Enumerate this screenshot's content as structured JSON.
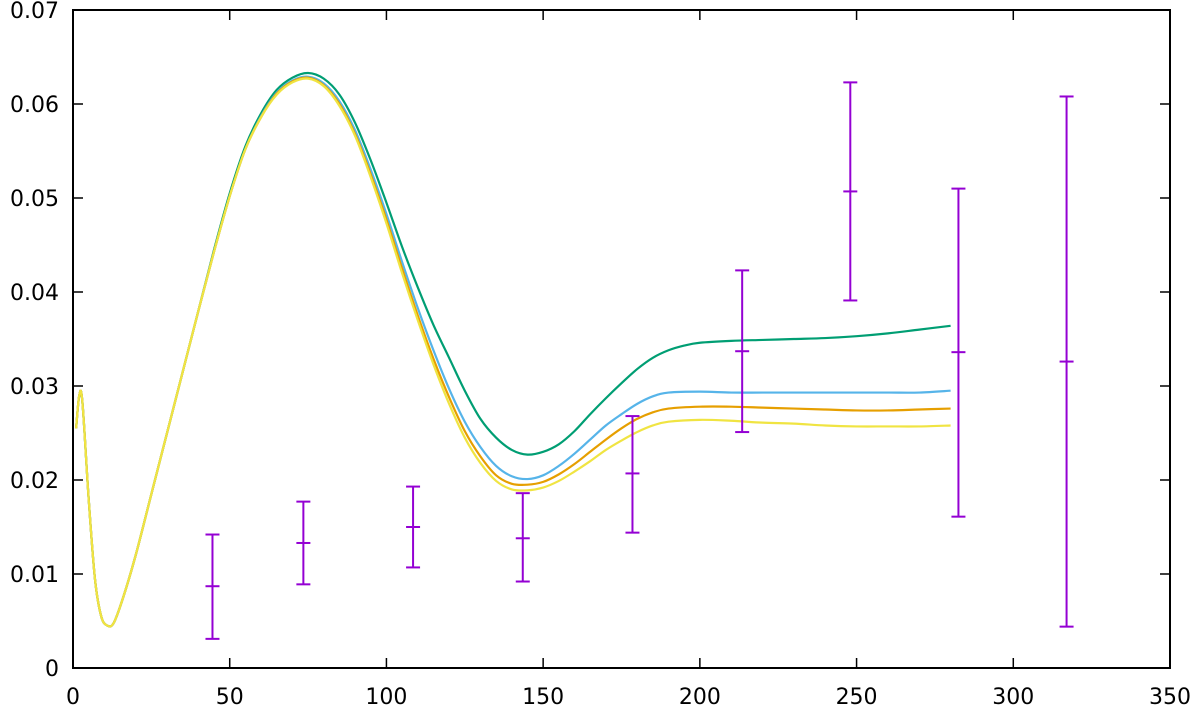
{
  "chart_data": {
    "type": "line",
    "title": "",
    "xlabel": "",
    "ylabel": "",
    "xlim": [
      0,
      350
    ],
    "ylim": [
      0,
      0.07
    ],
    "grid": false,
    "legend": "none",
    "x_ticks": [
      0,
      50,
      100,
      150,
      200,
      250,
      300,
      350
    ],
    "x_tick_labels": [
      "0",
      "50",
      "100",
      "150",
      "200",
      "250",
      "300",
      "350"
    ],
    "y_ticks": [
      0,
      0.01,
      0.02,
      0.03,
      0.04,
      0.05,
      0.06,
      0.07
    ],
    "y_tick_labels": [
      "0",
      "0.01",
      "0.02",
      "0.03",
      "0.04",
      "0.05",
      "0.06",
      "0.07"
    ],
    "series": [
      {
        "color": "#009e73",
        "points": [
          [
            1,
            0.0255
          ],
          [
            2,
            0.029
          ],
          [
            3,
            0.0283
          ],
          [
            5,
            0.018
          ],
          [
            7,
            0.0095
          ],
          [
            9,
            0.0055
          ],
          [
            11,
            0.0045
          ],
          [
            13,
            0.0048
          ],
          [
            16,
            0.0075
          ],
          [
            20,
            0.012
          ],
          [
            25,
            0.0185
          ],
          [
            30,
            0.025
          ],
          [
            35,
            0.0315
          ],
          [
            40,
            0.038
          ],
          [
            45,
            0.0445
          ],
          [
            50,
            0.0505
          ],
          [
            55,
            0.0555
          ],
          [
            60,
            0.059
          ],
          [
            65,
            0.0615
          ],
          [
            70,
            0.0628
          ],
          [
            75,
            0.0633
          ],
          [
            80,
            0.0627
          ],
          [
            85,
            0.061
          ],
          [
            90,
            0.058
          ],
          [
            95,
            0.054
          ],
          [
            100,
            0.0495
          ],
          [
            105,
            0.0448
          ],
          [
            110,
            0.0405
          ],
          [
            115,
            0.0365
          ],
          [
            120,
            0.033
          ],
          [
            125,
            0.0295
          ],
          [
            130,
            0.0265
          ],
          [
            135,
            0.0245
          ],
          [
            140,
            0.0232
          ],
          [
            145,
            0.0227
          ],
          [
            150,
            0.023
          ],
          [
            155,
            0.0238
          ],
          [
            160,
            0.0252
          ],
          [
            165,
            0.027
          ],
          [
            170,
            0.0287
          ],
          [
            175,
            0.0303
          ],
          [
            180,
            0.0318
          ],
          [
            185,
            0.033
          ],
          [
            190,
            0.0338
          ],
          [
            195,
            0.0343
          ],
          [
            200,
            0.0346
          ],
          [
            210,
            0.0348
          ],
          [
            220,
            0.0349
          ],
          [
            230,
            0.035
          ],
          [
            240,
            0.0351
          ],
          [
            250,
            0.0353
          ],
          [
            260,
            0.0356
          ],
          [
            270,
            0.036
          ],
          [
            280,
            0.0364
          ]
        ]
      },
      {
        "color": "#56b4e9",
        "points": [
          [
            1,
            0.0255
          ],
          [
            2,
            0.029
          ],
          [
            3,
            0.0283
          ],
          [
            5,
            0.018
          ],
          [
            7,
            0.0095
          ],
          [
            9,
            0.0055
          ],
          [
            11,
            0.0045
          ],
          [
            13,
            0.0048
          ],
          [
            16,
            0.0075
          ],
          [
            20,
            0.012
          ],
          [
            25,
            0.0185
          ],
          [
            30,
            0.025
          ],
          [
            35,
            0.0315
          ],
          [
            40,
            0.038
          ],
          [
            45,
            0.0443
          ],
          [
            50,
            0.0502
          ],
          [
            55,
            0.0552
          ],
          [
            60,
            0.0587
          ],
          [
            65,
            0.0612
          ],
          [
            70,
            0.0625
          ],
          [
            75,
            0.0629
          ],
          [
            80,
            0.0622
          ],
          [
            85,
            0.0603
          ],
          [
            90,
            0.0572
          ],
          [
            95,
            0.053
          ],
          [
            100,
            0.0483
          ],
          [
            105,
            0.0432
          ],
          [
            110,
            0.0383
          ],
          [
            115,
            0.0338
          ],
          [
            120,
            0.0297
          ],
          [
            125,
            0.0262
          ],
          [
            130,
            0.0235
          ],
          [
            135,
            0.0215
          ],
          [
            140,
            0.0204
          ],
          [
            145,
            0.0201
          ],
          [
            150,
            0.0205
          ],
          [
            155,
            0.0215
          ],
          [
            160,
            0.0228
          ],
          [
            165,
            0.0243
          ],
          [
            170,
            0.0258
          ],
          [
            175,
            0.027
          ],
          [
            180,
            0.0281
          ],
          [
            185,
            0.0289
          ],
          [
            190,
            0.0293
          ],
          [
            200,
            0.0294
          ],
          [
            210,
            0.0293
          ],
          [
            220,
            0.0293
          ],
          [
            230,
            0.0293
          ],
          [
            240,
            0.0293
          ],
          [
            250,
            0.0293
          ],
          [
            260,
            0.0293
          ],
          [
            270,
            0.0293
          ],
          [
            280,
            0.0295
          ]
        ]
      },
      {
        "color": "#e69f00",
        "points": [
          [
            1,
            0.0255
          ],
          [
            2,
            0.029
          ],
          [
            3,
            0.0283
          ],
          [
            5,
            0.018
          ],
          [
            7,
            0.0095
          ],
          [
            9,
            0.0055
          ],
          [
            11,
            0.0045
          ],
          [
            13,
            0.0048
          ],
          [
            16,
            0.0075
          ],
          [
            20,
            0.012
          ],
          [
            25,
            0.0185
          ],
          [
            30,
            0.025
          ],
          [
            35,
            0.0315
          ],
          [
            40,
            0.038
          ],
          [
            45,
            0.0443
          ],
          [
            50,
            0.0502
          ],
          [
            55,
            0.0552
          ],
          [
            60,
            0.0586
          ],
          [
            65,
            0.0611
          ],
          [
            70,
            0.0624
          ],
          [
            75,
            0.0628
          ],
          [
            80,
            0.062
          ],
          [
            85,
            0.06
          ],
          [
            90,
            0.0568
          ],
          [
            95,
            0.0525
          ],
          [
            100,
            0.0477
          ],
          [
            105,
            0.0425
          ],
          [
            110,
            0.0375
          ],
          [
            115,
            0.0329
          ],
          [
            120,
            0.0288
          ],
          [
            125,
            0.0252
          ],
          [
            130,
            0.0225
          ],
          [
            135,
            0.0205
          ],
          [
            140,
            0.0196
          ],
          [
            145,
            0.0195
          ],
          [
            150,
            0.0198
          ],
          [
            155,
            0.0206
          ],
          [
            160,
            0.0217
          ],
          [
            165,
            0.023
          ],
          [
            170,
            0.0243
          ],
          [
            175,
            0.0255
          ],
          [
            180,
            0.0265
          ],
          [
            185,
            0.0272
          ],
          [
            190,
            0.0276
          ],
          [
            200,
            0.0278
          ],
          [
            210,
            0.0278
          ],
          [
            220,
            0.0277
          ],
          [
            230,
            0.0276
          ],
          [
            240,
            0.0275
          ],
          [
            250,
            0.0274
          ],
          [
            260,
            0.0274
          ],
          [
            270,
            0.0275
          ],
          [
            280,
            0.0276
          ]
        ]
      },
      {
        "color": "#f0e442",
        "points": [
          [
            1,
            0.0255
          ],
          [
            2,
            0.029
          ],
          [
            3,
            0.0283
          ],
          [
            5,
            0.018
          ],
          [
            7,
            0.0095
          ],
          [
            9,
            0.0055
          ],
          [
            11,
            0.0045
          ],
          [
            13,
            0.0048
          ],
          [
            16,
            0.0075
          ],
          [
            20,
            0.012
          ],
          [
            25,
            0.0185
          ],
          [
            30,
            0.025
          ],
          [
            35,
            0.0315
          ],
          [
            40,
            0.038
          ],
          [
            45,
            0.0443
          ],
          [
            50,
            0.0502
          ],
          [
            55,
            0.0552
          ],
          [
            60,
            0.0586
          ],
          [
            65,
            0.061
          ],
          [
            70,
            0.0623
          ],
          [
            75,
            0.0627
          ],
          [
            80,
            0.0619
          ],
          [
            85,
            0.0598
          ],
          [
            90,
            0.0566
          ],
          [
            95,
            0.0522
          ],
          [
            100,
            0.0473
          ],
          [
            105,
            0.042
          ],
          [
            110,
            0.037
          ],
          [
            115,
            0.0323
          ],
          [
            120,
            0.0281
          ],
          [
            125,
            0.0245
          ],
          [
            130,
            0.0218
          ],
          [
            135,
            0.0199
          ],
          [
            140,
            0.019
          ],
          [
            145,
            0.0189
          ],
          [
            150,
            0.0192
          ],
          [
            155,
            0.0199
          ],
          [
            160,
            0.0209
          ],
          [
            165,
            0.022
          ],
          [
            170,
            0.0232
          ],
          [
            175,
            0.0242
          ],
          [
            180,
            0.0251
          ],
          [
            185,
            0.0258
          ],
          [
            190,
            0.0262
          ],
          [
            200,
            0.0264
          ],
          [
            210,
            0.0263
          ],
          [
            220,
            0.0261
          ],
          [
            230,
            0.026
          ],
          [
            240,
            0.0258
          ],
          [
            250,
            0.0257
          ],
          [
            260,
            0.0257
          ],
          [
            270,
            0.0257
          ],
          [
            280,
            0.0258
          ]
        ]
      }
    ],
    "error_bars": {
      "color": "#9400d3",
      "points": [
        {
          "x": 44.5,
          "y": 0.0087,
          "low": 0.0031,
          "high": 0.0142
        },
        {
          "x": 73.5,
          "y": 0.0133,
          "low": 0.0089,
          "high": 0.0177
        },
        {
          "x": 108.5,
          "y": 0.015,
          "low": 0.0107,
          "high": 0.0193
        },
        {
          "x": 143.5,
          "y": 0.0138,
          "low": 0.0092,
          "high": 0.0186
        },
        {
          "x": 178.5,
          "y": 0.0207,
          "low": 0.0144,
          "high": 0.0268
        },
        {
          "x": 213.5,
          "y": 0.0337,
          "low": 0.0251,
          "high": 0.0423
        },
        {
          "x": 248,
          "y": 0.0507,
          "low": 0.0391,
          "high": 0.0623
        },
        {
          "x": 282.5,
          "y": 0.0336,
          "low": 0.0161,
          "high": 0.051
        },
        {
          "x": 317,
          "y": 0.0326,
          "low": 0.0044,
          "high": 0.0608
        }
      ]
    }
  }
}
